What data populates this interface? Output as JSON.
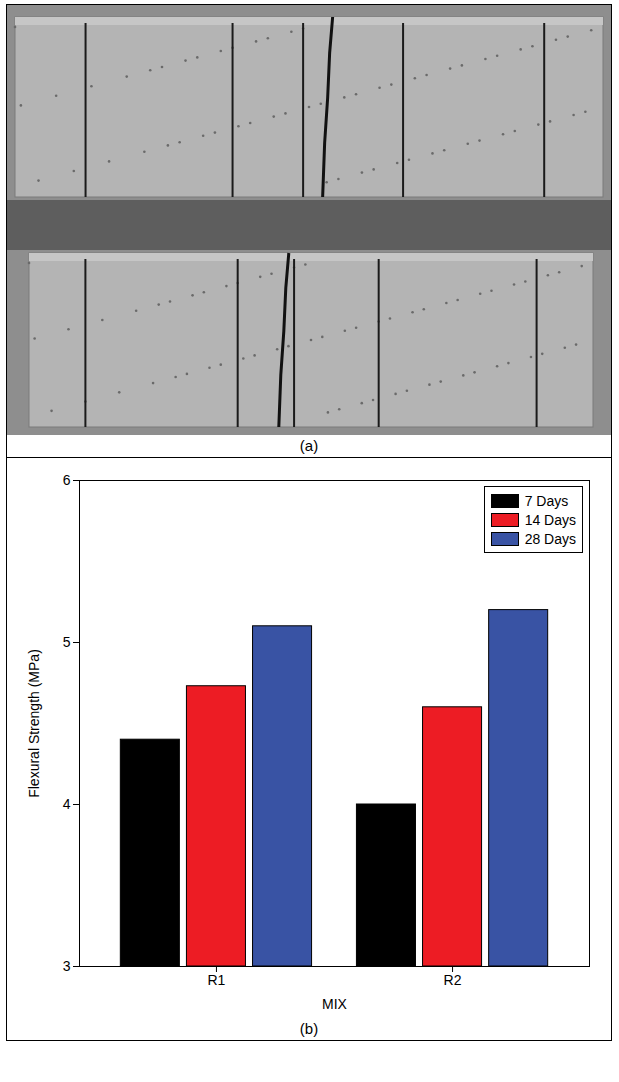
{
  "photo": {
    "caption": "(a)"
  },
  "chart_data": {
    "type": "bar",
    "caption": "(b)",
    "x_label": "MIX",
    "y_label": "Flexural Strength (MPa)",
    "categories": [
      "R1",
      "R2"
    ],
    "series": [
      {
        "name": "7 Days",
        "color": "#000000",
        "values": [
          4.4,
          4.0
        ]
      },
      {
        "name": "14 Days",
        "color": "#ed1c24",
        "values": [
          4.73,
          4.6
        ]
      },
      {
        "name": "28 Days",
        "color": "#3953a4",
        "values": [
          5.1,
          5.2
        ]
      }
    ],
    "ylim": [
      3,
      6
    ],
    "yticks": [
      3,
      4,
      5,
      6
    ],
    "grid": false,
    "legend": "top-right"
  }
}
